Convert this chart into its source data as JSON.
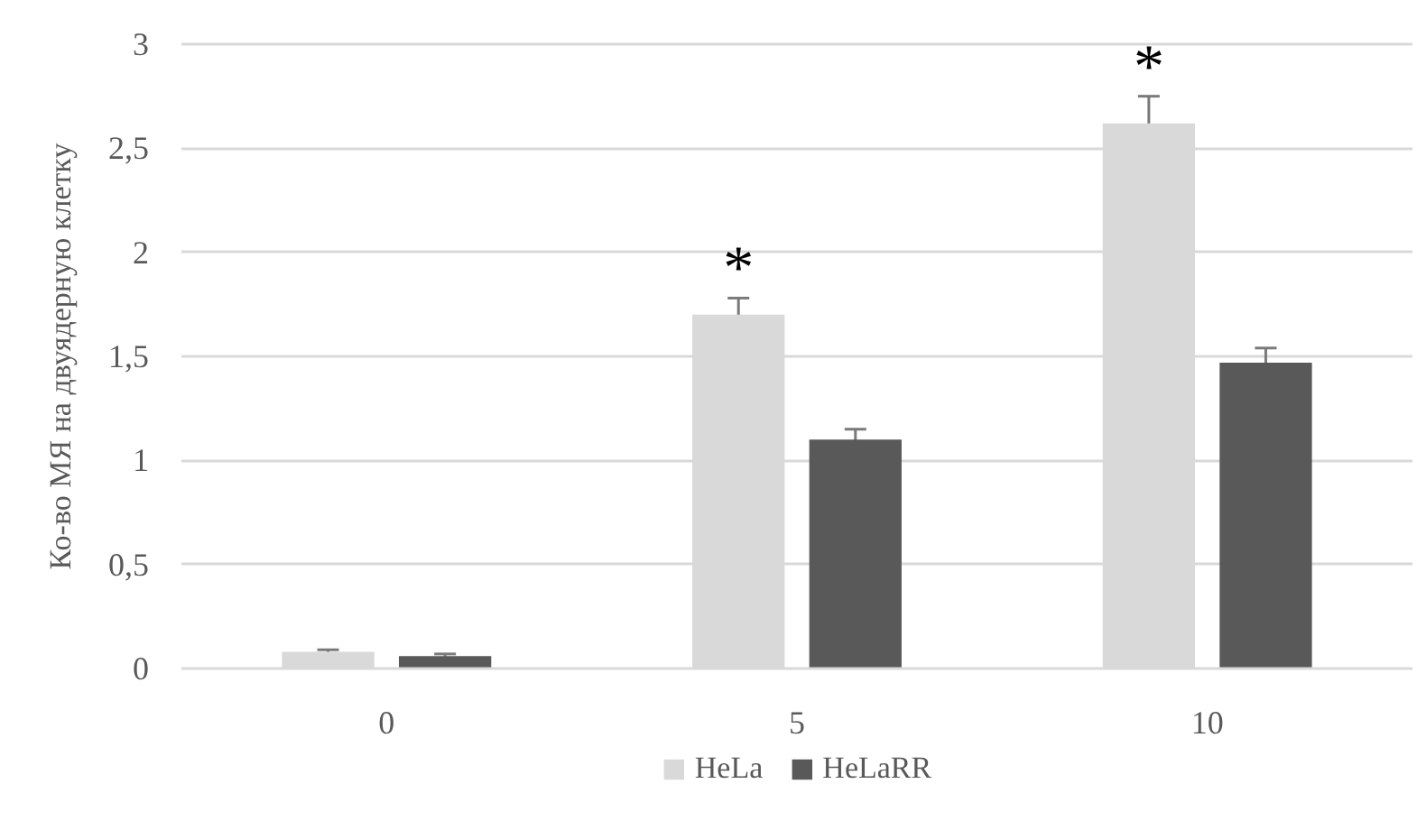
{
  "chart_data": {
    "type": "bar",
    "ylabel": "Ко-во МЯ на двуядерную клетку",
    "categories": [
      "0",
      "5",
      "10"
    ],
    "series": [
      {
        "name": "HeLa",
        "color": "#d9d9d9",
        "values": [
          0.08,
          1.7,
          2.62
        ],
        "errors": [
          0.01,
          0.08,
          0.13
        ]
      },
      {
        "name": "HeLaRR",
        "color": "#595959",
        "values": [
          0.06,
          1.1,
          1.47
        ],
        "errors": [
          0.01,
          0.05,
          0.07
        ]
      }
    ],
    "ylim": [
      0,
      3
    ],
    "yticks": [
      0,
      {
        "value": 0.5,
        "label": "0,5"
      },
      1,
      {
        "value": 1.5,
        "label": "1,5"
      },
      2,
      {
        "value": 2.5,
        "label": "2,5"
      },
      3
    ],
    "grid": "y",
    "legend": "bottom",
    "annotations": [
      "*",
      "*"
    ]
  }
}
